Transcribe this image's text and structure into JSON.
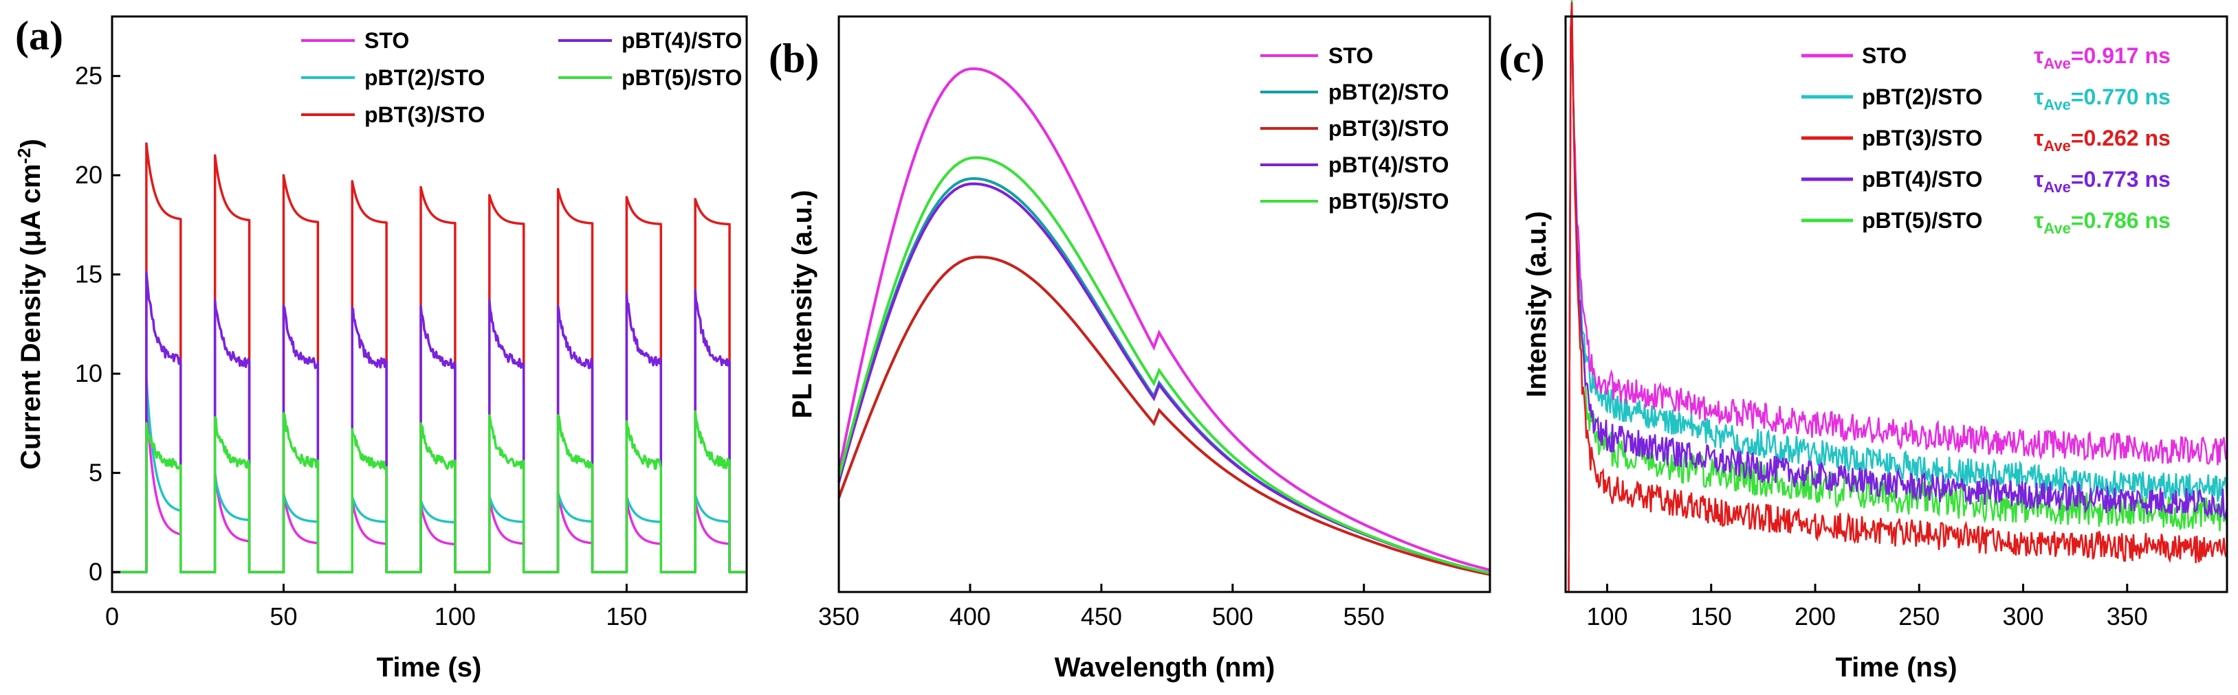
{
  "colors": {
    "STO": "#e52fe0",
    "pBT(2)/STO": "#22c3c3",
    "pBT(3)/STO": "#e21a1a",
    "pBT(4)/STO": "#7a22dd",
    "pBT(5)/STO": "#3ae03a",
    "pl_pBT(3)/STO": "#c8231c",
    "pl_pBT(2)/STO": "#14a0a0"
  },
  "chart_data": [
    {
      "panel": "(a)",
      "type": "line",
      "xlabel": "Time (s)",
      "ylabel_main": "Current Density (μA cm",
      "ylabel_sup": "-2",
      "ylabel_end": ")",
      "xlim": [
        0,
        185
      ],
      "ylim": [
        -1,
        28
      ],
      "xticks": [
        0,
        50,
        100,
        150
      ],
      "xtick_labels": [
        "0",
        "50",
        "100",
        "150"
      ],
      "yticks": [
        0,
        5,
        10,
        15,
        20,
        25
      ],
      "ytick_labels": [
        "0",
        "5",
        "10",
        "15",
        "20",
        "25"
      ],
      "light_on_times": [
        10,
        30,
        50,
        70,
        90,
        110,
        130,
        150,
        170
      ],
      "on_duration_s": 10,
      "series": [
        {
          "name": "STO",
          "peak_current": [
            8.7,
            5.0,
            4.0,
            3.6,
            3.4,
            3.7,
            4.0,
            3.6,
            3.6
          ],
          "end_current": 1.2
        },
        {
          "name": "pBT(2)/STO",
          "peak_current": [
            9.8,
            4.8,
            3.9,
            3.8,
            3.6,
            3.8,
            4.0,
            3.8,
            3.9
          ],
          "end_current": 2.4
        },
        {
          "name": "pBT(3)/STO",
          "peak_current": [
            21.6,
            21.0,
            20.0,
            19.7,
            19.4,
            19.0,
            19.3,
            18.9,
            18.8
          ],
          "end_current": 17.4
        },
        {
          "name": "pBT(4)/STO",
          "peak_current": [
            15.1,
            13.7,
            13.4,
            13.3,
            13.4,
            13.7,
            13.4,
            14.0,
            14.2
          ],
          "end_current": 10.2
        },
        {
          "name": "pBT(5)/STO",
          "peak_current": [
            7.5,
            7.8,
            8.0,
            7.2,
            7.5,
            7.9,
            7.9,
            7.6,
            8.1
          ],
          "end_current": 5.2
        }
      ],
      "legend": [
        [
          "STO",
          "pBT(4)/STO"
        ],
        [
          "pBT(2)/STO",
          "pBT(5)/STO"
        ],
        [
          "pBT(3)/STO"
        ]
      ]
    },
    {
      "panel": "(b)",
      "type": "line",
      "xlabel": "Wavelength (nm)",
      "ylabel": "PL Intensity (a.u.)",
      "xlim": [
        350,
        598
      ],
      "ylim": [
        0,
        1.1
      ],
      "xticks": [
        350,
        400,
        450,
        500,
        550
      ],
      "xtick_labels": [
        "350",
        "400",
        "450",
        "500",
        "550"
      ],
      "series": [
        {
          "name": "STO",
          "color_key": "STO",
          "peak_nm": 400,
          "peak": 1.0,
          "start": 0.23,
          "shoulder": 0.15
        },
        {
          "name": "pBT(2)/STO",
          "color_key": "pl_pBT(2)/STO",
          "peak_nm": 400,
          "peak": 0.79,
          "start": 0.21,
          "shoulder": 0.13
        },
        {
          "name": "pBT(3)/STO",
          "color_key": "pl_pBT(3)/STO",
          "peak_nm": 402,
          "peak": 0.64,
          "start": 0.18,
          "shoulder": 0.12
        },
        {
          "name": "pBT(4)/STO",
          "color_key": "pBT(4)/STO",
          "peak_nm": 400,
          "peak": 0.78,
          "start": 0.21,
          "shoulder": 0.13
        },
        {
          "name": "pBT(5)/STO",
          "color_key": "pBT(5)/STO",
          "peak_nm": 401,
          "peak": 0.83,
          "start": 0.22,
          "shoulder": 0.13
        }
      ],
      "legend": [
        "STO",
        "pBT(2)/STO",
        "pBT(3)/STO",
        "pBT(4)/STO",
        "pBT(5)/STO"
      ]
    },
    {
      "panel": "(c)",
      "type": "line",
      "xlabel": "Time (ns)",
      "ylabel": "Intensity (a.u.)",
      "xlim": [
        80,
        398
      ],
      "ylim": [
        0,
        1.0
      ],
      "xticks": [
        100,
        150,
        200,
        250,
        300,
        350
      ],
      "xtick_labels": [
        "100",
        "150",
        "200",
        "250",
        "300",
        "350"
      ],
      "series": [
        {
          "name": "STO",
          "tau_label": "=0.917 ns",
          "level_100": 0.36,
          "level_end": 0.23,
          "noise": 0.025
        },
        {
          "name": "pBT(2)/STO",
          "tau_label": "=0.770 ns",
          "level_100": 0.33,
          "level_end": 0.16,
          "noise": 0.025
        },
        {
          "name": "pBT(3)/STO",
          "tau_label": "=0.262 ns",
          "level_100": 0.18,
          "level_end": 0.06,
          "noise": 0.025
        },
        {
          "name": "pBT(4)/STO",
          "tau_label": "=0.773 ns",
          "level_100": 0.27,
          "level_end": 0.14,
          "noise": 0.025
        },
        {
          "name": "pBT(5)/STO",
          "tau_label": "=0.786 ns",
          "level_100": 0.25,
          "level_end": 0.12,
          "noise": 0.03
        }
      ],
      "tau_symbol": "τ",
      "tau_subscript": "Ave",
      "legend": [
        "STO",
        "pBT(2)/STO",
        "pBT(3)/STO",
        "pBT(4)/STO",
        "pBT(5)/STO"
      ]
    }
  ]
}
